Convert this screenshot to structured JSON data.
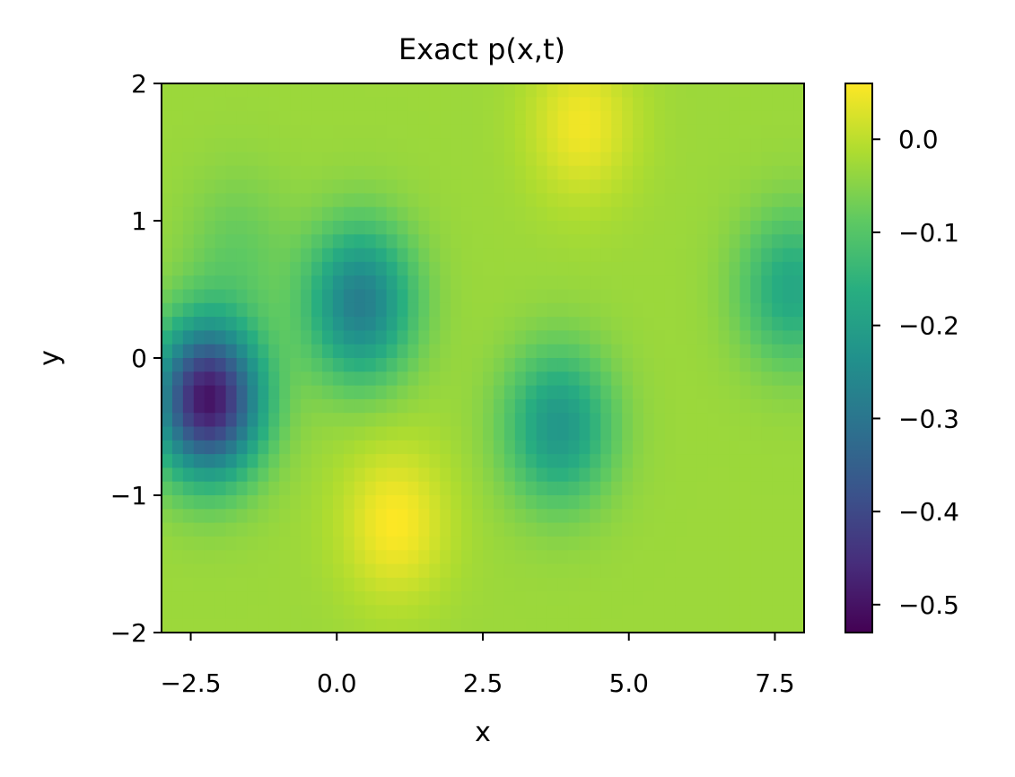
{
  "chart_data": {
    "type": "heatmap",
    "title": "Exact p(x,t)",
    "xlabel": "x",
    "ylabel": "y",
    "xlim": [
      -3,
      8
    ],
    "ylim": [
      -2,
      2
    ],
    "x_ticks": [
      -2.5,
      0.0,
      2.5,
      5.0,
      7.5
    ],
    "x_tick_labels": [
      "−2.5",
      "0.0",
      "2.5",
      "5.0",
      "7.5"
    ],
    "y_ticks": [
      -2,
      -1,
      0,
      1,
      2
    ],
    "y_tick_labels": [
      "−2",
      "−1",
      "0",
      "1",
      "2"
    ],
    "colormap": "viridis",
    "colorbar": {
      "vmin": -0.53,
      "vmax": 0.06,
      "ticks": [
        0.0,
        -0.1,
        -0.2,
        -0.3,
        -0.4,
        -0.5
      ],
      "tick_labels": [
        "0.0",
        "−0.1",
        "−0.2",
        "−0.3",
        "−0.4",
        "−0.5"
      ]
    },
    "grid": false,
    "field": {
      "base": -0.03,
      "features": [
        {
          "x": -2.2,
          "y": -0.3,
          "value": -0.5
        },
        {
          "x": 0.4,
          "y": 0.4,
          "value": -0.28
        },
        {
          "x": 3.8,
          "y": -0.5,
          "value": -0.22
        },
        {
          "x": 7.8,
          "y": 0.5,
          "value": -0.18
        },
        {
          "x": 1.0,
          "y": -1.2,
          "value": 0.06
        },
        {
          "x": 4.2,
          "y": 1.7,
          "value": 0.05
        },
        {
          "x": -1.7,
          "y": 0.8,
          "value": -0.08
        }
      ]
    }
  }
}
